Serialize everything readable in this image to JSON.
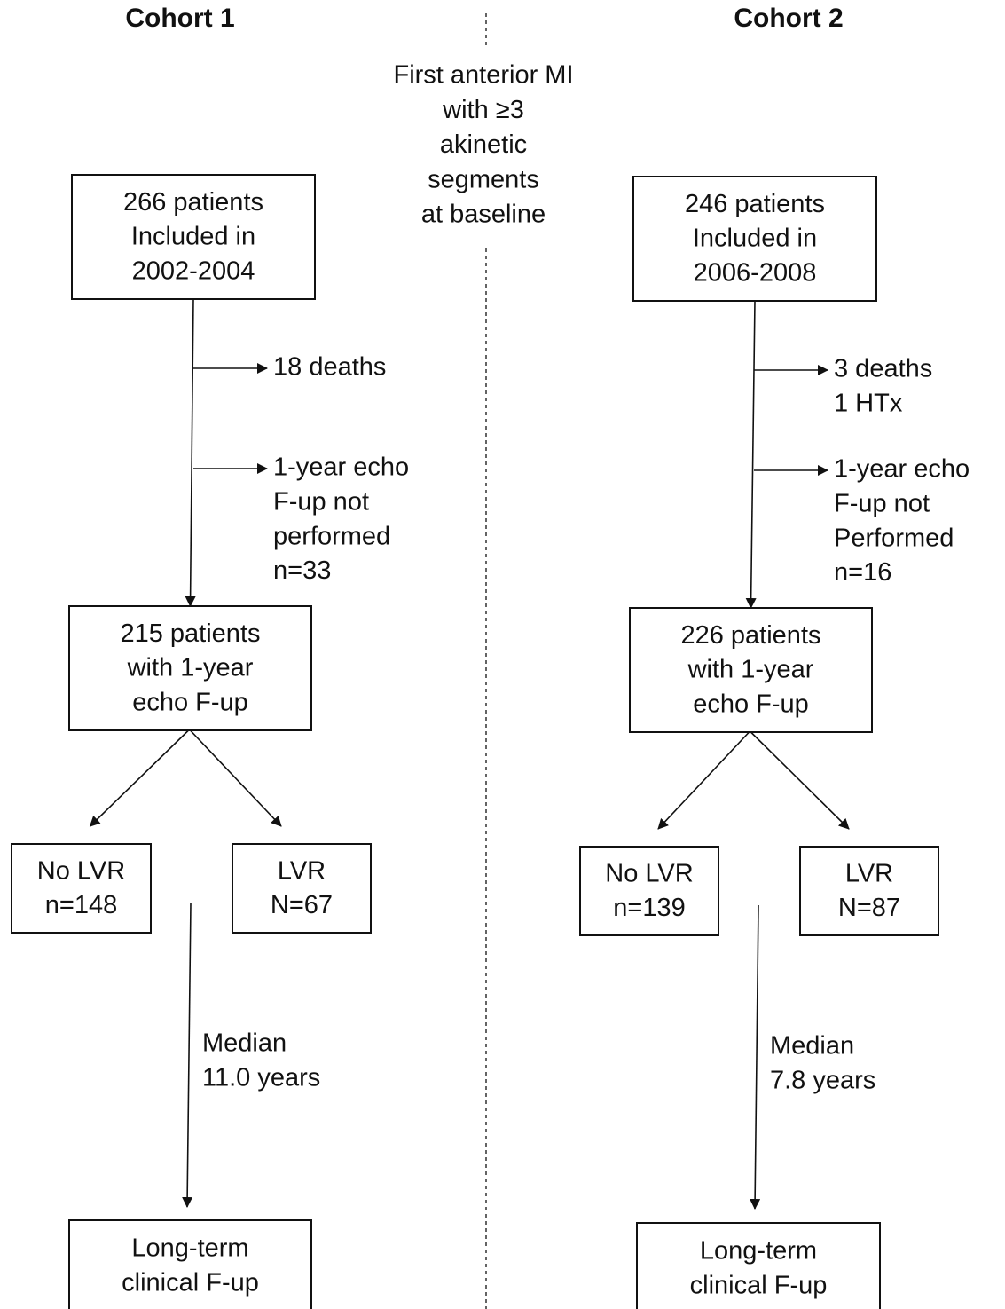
{
  "center_label": [
    "First anterior MI",
    "with ≥3",
    "akinetic",
    "segments",
    "at baseline"
  ],
  "cohorts": [
    {
      "title": "Cohort 1",
      "included": [
        "266 patients",
        "Included in",
        "2002-2004"
      ],
      "exclusions": [
        [
          "18 deaths"
        ],
        [
          "1-year echo",
          "F-up not",
          "performed",
          "n=33"
        ]
      ],
      "followup": [
        "215 patients",
        "with 1-year",
        "echo F-up"
      ],
      "no_lvr": [
        "No LVR",
        "n=148"
      ],
      "lvr": [
        "LVR",
        "N=67"
      ],
      "median": [
        "Median",
        "11.0 years"
      ],
      "long_term": [
        "Long-term",
        "clinical F-up"
      ]
    },
    {
      "title": "Cohort 2",
      "included": [
        "246 patients",
        "Included in",
        "2006-2008"
      ],
      "exclusions": [
        [
          "3 deaths",
          "1 HTx"
        ],
        [
          "1-year echo",
          "F-up not",
          "Performed",
          "n=16"
        ]
      ],
      "followup": [
        "226 patients",
        "with 1-year",
        "echo F-up"
      ],
      "no_lvr": [
        "No LVR",
        "n=139"
      ],
      "lvr": [
        "LVR",
        "N=87"
      ],
      "median": [
        "Median",
        "7.8 years"
      ],
      "long_term": [
        "Long-term",
        "clinical F-up"
      ]
    }
  ]
}
